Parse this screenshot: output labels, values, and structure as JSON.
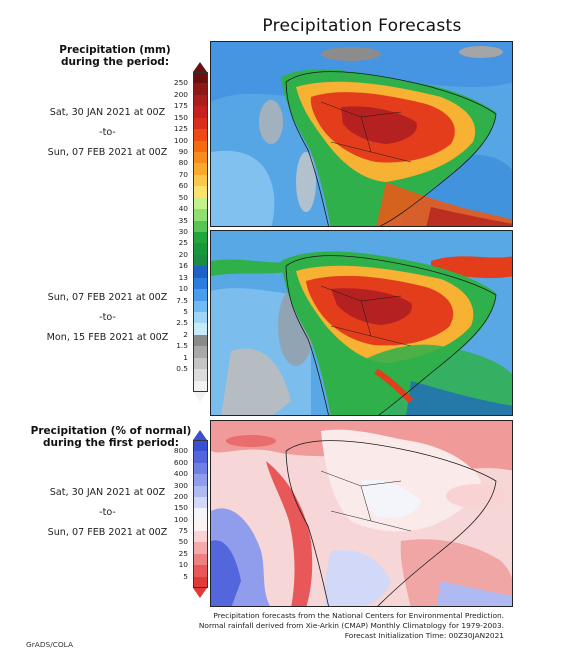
{
  "title": "Precipitation Forecasts",
  "sections": {
    "mm_heading_1": "Precipitation (mm)",
    "mm_heading_2": "during the period:",
    "pct_heading_1": "Precipitation (% of normal)",
    "pct_heading_2": "during the first period:"
  },
  "periods": {
    "p1": {
      "start": "Sat, 30 JAN 2021 at 00Z",
      "sep": "-to-",
      "end": "Sun, 07 FEB 2021 at 00Z"
    },
    "p2": {
      "start": "Sun, 07 FEB 2021 at 00Z",
      "sep": "-to-",
      "end": "Mon, 15 FEB 2021 at 00Z"
    },
    "p3": {
      "start": "Sat, 30 JAN 2021 at 00Z",
      "sep": "-to-",
      "end": "Sun, 07 FEB 2021 at 00Z"
    }
  },
  "mm_scale": {
    "labels": [
      "250",
      "200",
      "175",
      "150",
      "125",
      "100",
      "90",
      "80",
      "70",
      "60",
      "50",
      "40",
      "35",
      "30",
      "25",
      "20",
      "16",
      "13",
      "10",
      "7.5",
      "5",
      "2.5",
      "2",
      "1.5",
      "1",
      "0.5"
    ],
    "colors": [
      "#6b1010",
      "#8c1818",
      "#aa1e1e",
      "#c62020",
      "#dd2d1c",
      "#ee4a14",
      "#f46b14",
      "#f78c1c",
      "#faaa2a",
      "#fcc84a",
      "#fde36e",
      "#c6f08c",
      "#8fe070",
      "#58c454",
      "#24a43c",
      "#18983c",
      "#1b8c40",
      "#1e62c6",
      "#2c7de0",
      "#4a9cec",
      "#72baf3",
      "#9fd6f8",
      "#c8ebfa",
      "#8a8a8a",
      "#a8a8a8",
      "#c4c4c4",
      "#dcdcdc",
      "#f2f2f2"
    ]
  },
  "pct_scale": {
    "labels": [
      "800",
      "600",
      "400",
      "300",
      "200",
      "150",
      "100",
      "75",
      "50",
      "25",
      "10",
      "5"
    ],
    "colors": [
      "#3b4fd4",
      "#5366dc",
      "#6f80e4",
      "#8f9dec",
      "#b0baf2",
      "#d2d8f7",
      "#f4f5fb",
      "#fdf1f1",
      "#f9d3d3",
      "#f4aaaa",
      "#ee8080",
      "#e85858",
      "#e03a3a"
    ]
  },
  "footer": {
    "line1": "Precipitation forecasts from the National Centers for Environmental Prediction.",
    "line2": "Normal rainfall derived from Xie-Arkin (CMAP) Monthly Climatology for 1979-2003.",
    "line3": "Forecast Initialization Time: 00Z30JAN2021"
  },
  "credit": "GrADS/COLA"
}
